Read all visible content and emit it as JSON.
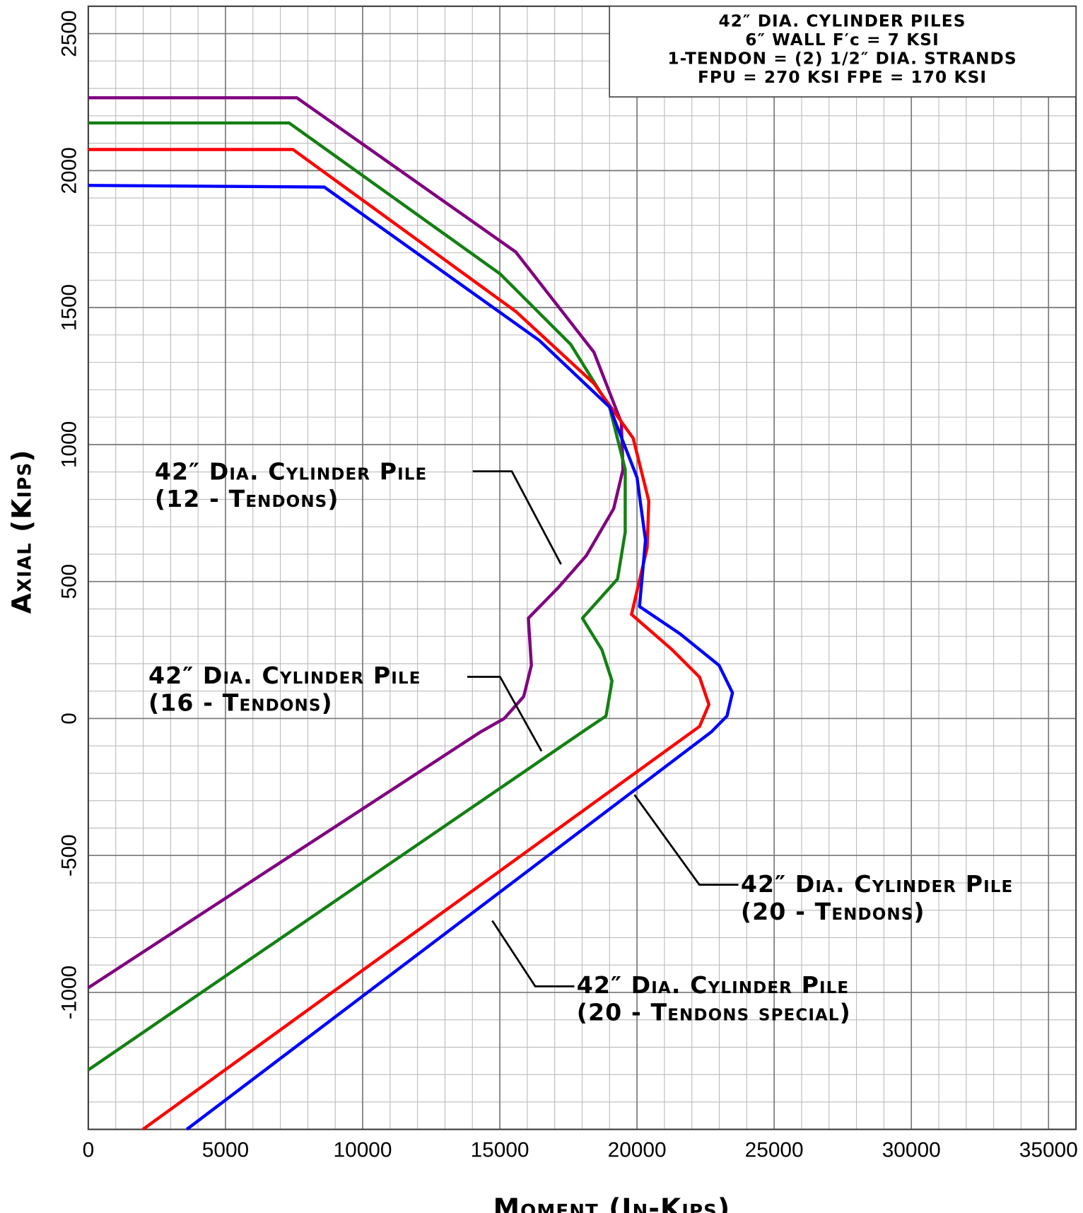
{
  "chart_data": {
    "type": "line",
    "xlabel": "Moment (In-Kips)",
    "ylabel": "Axial (Kips)",
    "xlim": [
      0,
      36000
    ],
    "ylim": [
      -1500,
      2600
    ],
    "xticks": [
      0,
      5000,
      10000,
      15000,
      20000,
      25000,
      30000,
      35000
    ],
    "yticks": [
      -1000,
      -500,
      0,
      500,
      1000,
      1500,
      2000,
      2500
    ],
    "grid": true,
    "minor_grid": {
      "x": 1000,
      "y": 100
    },
    "note": [
      "42″ DIA. CYLINDER PILES",
      "6″ WALL F′c = 7 KSI",
      "1-TENDON = (2) 1/2″ DIA. STRANDS",
      "FPU = 270 KSI  FPE = 170 KSI"
    ],
    "series": [
      {
        "name": [
          "42″ Dia. Cylinder Pile",
          "(12 - Tendons)"
        ],
        "color": "#800080",
        "x": [
          0,
          7600,
          15580,
          18430,
          19430,
          19490,
          19150,
          18150,
          17150,
          16040,
          16150,
          15870,
          15160,
          14300,
          0
        ],
        "values": [
          2266,
          2266,
          1703,
          1337,
          1080,
          909,
          766,
          594,
          480,
          366,
          194,
          80,
          0,
          -49,
          -983
        ]
      },
      {
        "name": [
          "42″ Dia. Cylinder Pile",
          "(16 - Tendons)"
        ],
        "color": "#138013",
        "x": [
          0,
          7320,
          15010,
          17580,
          19000,
          19570,
          19570,
          19290,
          18010,
          18720,
          19090,
          18870,
          18010,
          0
        ],
        "values": [
          2174,
          2174,
          1623,
          1366,
          1137,
          909,
          680,
          509,
          366,
          251,
          137,
          9,
          -49,
          -1283
        ]
      },
      {
        "name": [
          "42″ Dia. Cylinder Pile",
          "(20 - Tendons)"
        ],
        "color": "#ff0000",
        "x": [
          0,
          7460,
          15580,
          18430,
          19860,
          20430,
          20370,
          19800,
          21280,
          22280,
          22620,
          22280,
          1990
        ],
        "values": [
          2077,
          2077,
          1486,
          1223,
          1023,
          794,
          623,
          380,
          251,
          151,
          51,
          -29,
          -1500
        ]
      },
      {
        "name": [
          "42″ Dia. Cylinder Pile",
          "(20 - Tendons special)"
        ],
        "color": "#0000ff",
        "x": [
          0,
          8600,
          16440,
          19000,
          20000,
          20310,
          20090,
          21570,
          22990,
          23480,
          23280,
          22710,
          3590
        ],
        "values": [
          1946,
          1940,
          1380,
          1137,
          880,
          651,
          409,
          309,
          194,
          94,
          9,
          -49,
          -1500
        ]
      }
    ]
  }
}
